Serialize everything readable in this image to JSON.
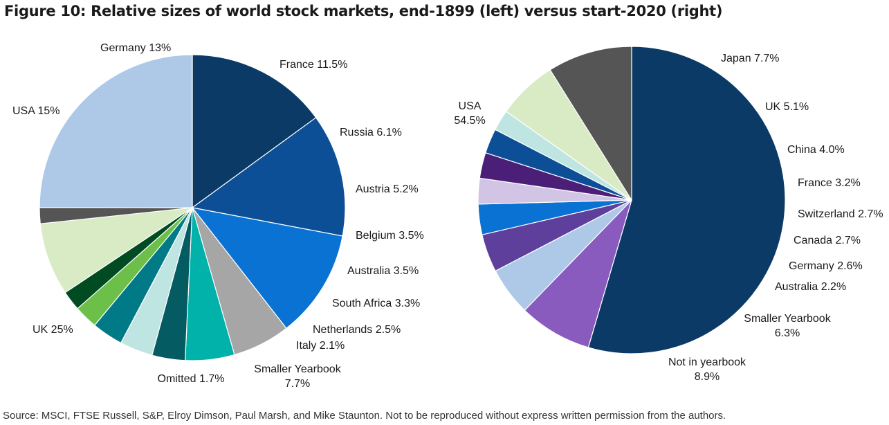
{
  "title": "Figure 10: Relative sizes of world stock markets, end-1899 (left) versus start-2020 (right)",
  "source": "Source: MSCI, FTSE Russell, S&P, Elroy Dimson, Paul Marsh, and Mike Staunton. Not to be reproduced without express written permission from the authors.",
  "chart_data": [
    {
      "type": "pie",
      "title": "",
      "slices": [
        {
          "label": "USA",
          "value": 15,
          "text": "USA 15%",
          "color": "#0b3a66"
        },
        {
          "label": "Germany",
          "value": 13,
          "text": "Germany 13%",
          "color": "#0c4f96"
        },
        {
          "label": "France",
          "value": 11.5,
          "text": "France 11.5%",
          "color": "#0a72d2"
        },
        {
          "label": "Russia",
          "value": 6.1,
          "text": "Russia 6.1%",
          "color": "#a6a6a6"
        },
        {
          "label": "Austria",
          "value": 5.2,
          "text": "Austria 5.2%",
          "color": "#00b2a9"
        },
        {
          "label": "Belgium",
          "value": 3.5,
          "text": "Belgium 3.5%",
          "color": "#045c62"
        },
        {
          "label": "Australia",
          "value": 3.5,
          "text": "Australia 3.5%",
          "color": "#bfe5e3"
        },
        {
          "label": "South Africa",
          "value": 3.3,
          "text": "South Africa 3.3%",
          "color": "#007a87"
        },
        {
          "label": "Netherlands",
          "value": 2.5,
          "text": "Netherlands 2.5%",
          "color": "#6cc04a"
        },
        {
          "label": "Italy",
          "value": 2.1,
          "text": "Italy 2.1%",
          "color": "#004b22"
        },
        {
          "label": "Smaller Yearbook",
          "value": 7.7,
          "text": "Smaller Yearbook\n7.7%",
          "color": "#d8ebc4"
        },
        {
          "label": "Omitted",
          "value": 1.7,
          "text": "Omitted 1.7%",
          "color": "#555555"
        },
        {
          "label": "UK",
          "value": 25,
          "text": "UK 25%",
          "color": "#aec8e8"
        }
      ]
    },
    {
      "type": "pie",
      "title": "",
      "slices": [
        {
          "label": "USA",
          "value": 54.5,
          "text": "USA\n54.5%",
          "color": "#0b3a66"
        },
        {
          "label": "Japan",
          "value": 7.7,
          "text": "Japan 7.7%",
          "color": "#8a5bbf"
        },
        {
          "label": "UK",
          "value": 5.1,
          "text": "UK 5.1%",
          "color": "#aec8e8"
        },
        {
          "label": "China",
          "value": 4.0,
          "text": "China 4.0%",
          "color": "#5e3f9c"
        },
        {
          "label": "France",
          "value": 3.2,
          "text": "France 3.2%",
          "color": "#0a72d2"
        },
        {
          "label": "Switzerland",
          "value": 2.7,
          "text": "Switzerland 2.7%",
          "color": "#d2c4e4"
        },
        {
          "label": "Canada",
          "value": 2.7,
          "text": "Canada 2.7%",
          "color": "#4b1f78"
        },
        {
          "label": "Germany",
          "value": 2.6,
          "text": "Germany 2.6%",
          "color": "#0c4f96"
        },
        {
          "label": "Australia",
          "value": 2.2,
          "text": "Australia 2.2%",
          "color": "#bfe5e3"
        },
        {
          "label": "Smaller Yearbook",
          "value": 6.3,
          "text": "Smaller Yearbook\n6.3%",
          "color": "#d8ebc4"
        },
        {
          "label": "Not in yearbook",
          "value": 8.9,
          "text": "Not in yearbook\n8.9%",
          "color": "#555555"
        }
      ]
    }
  ]
}
